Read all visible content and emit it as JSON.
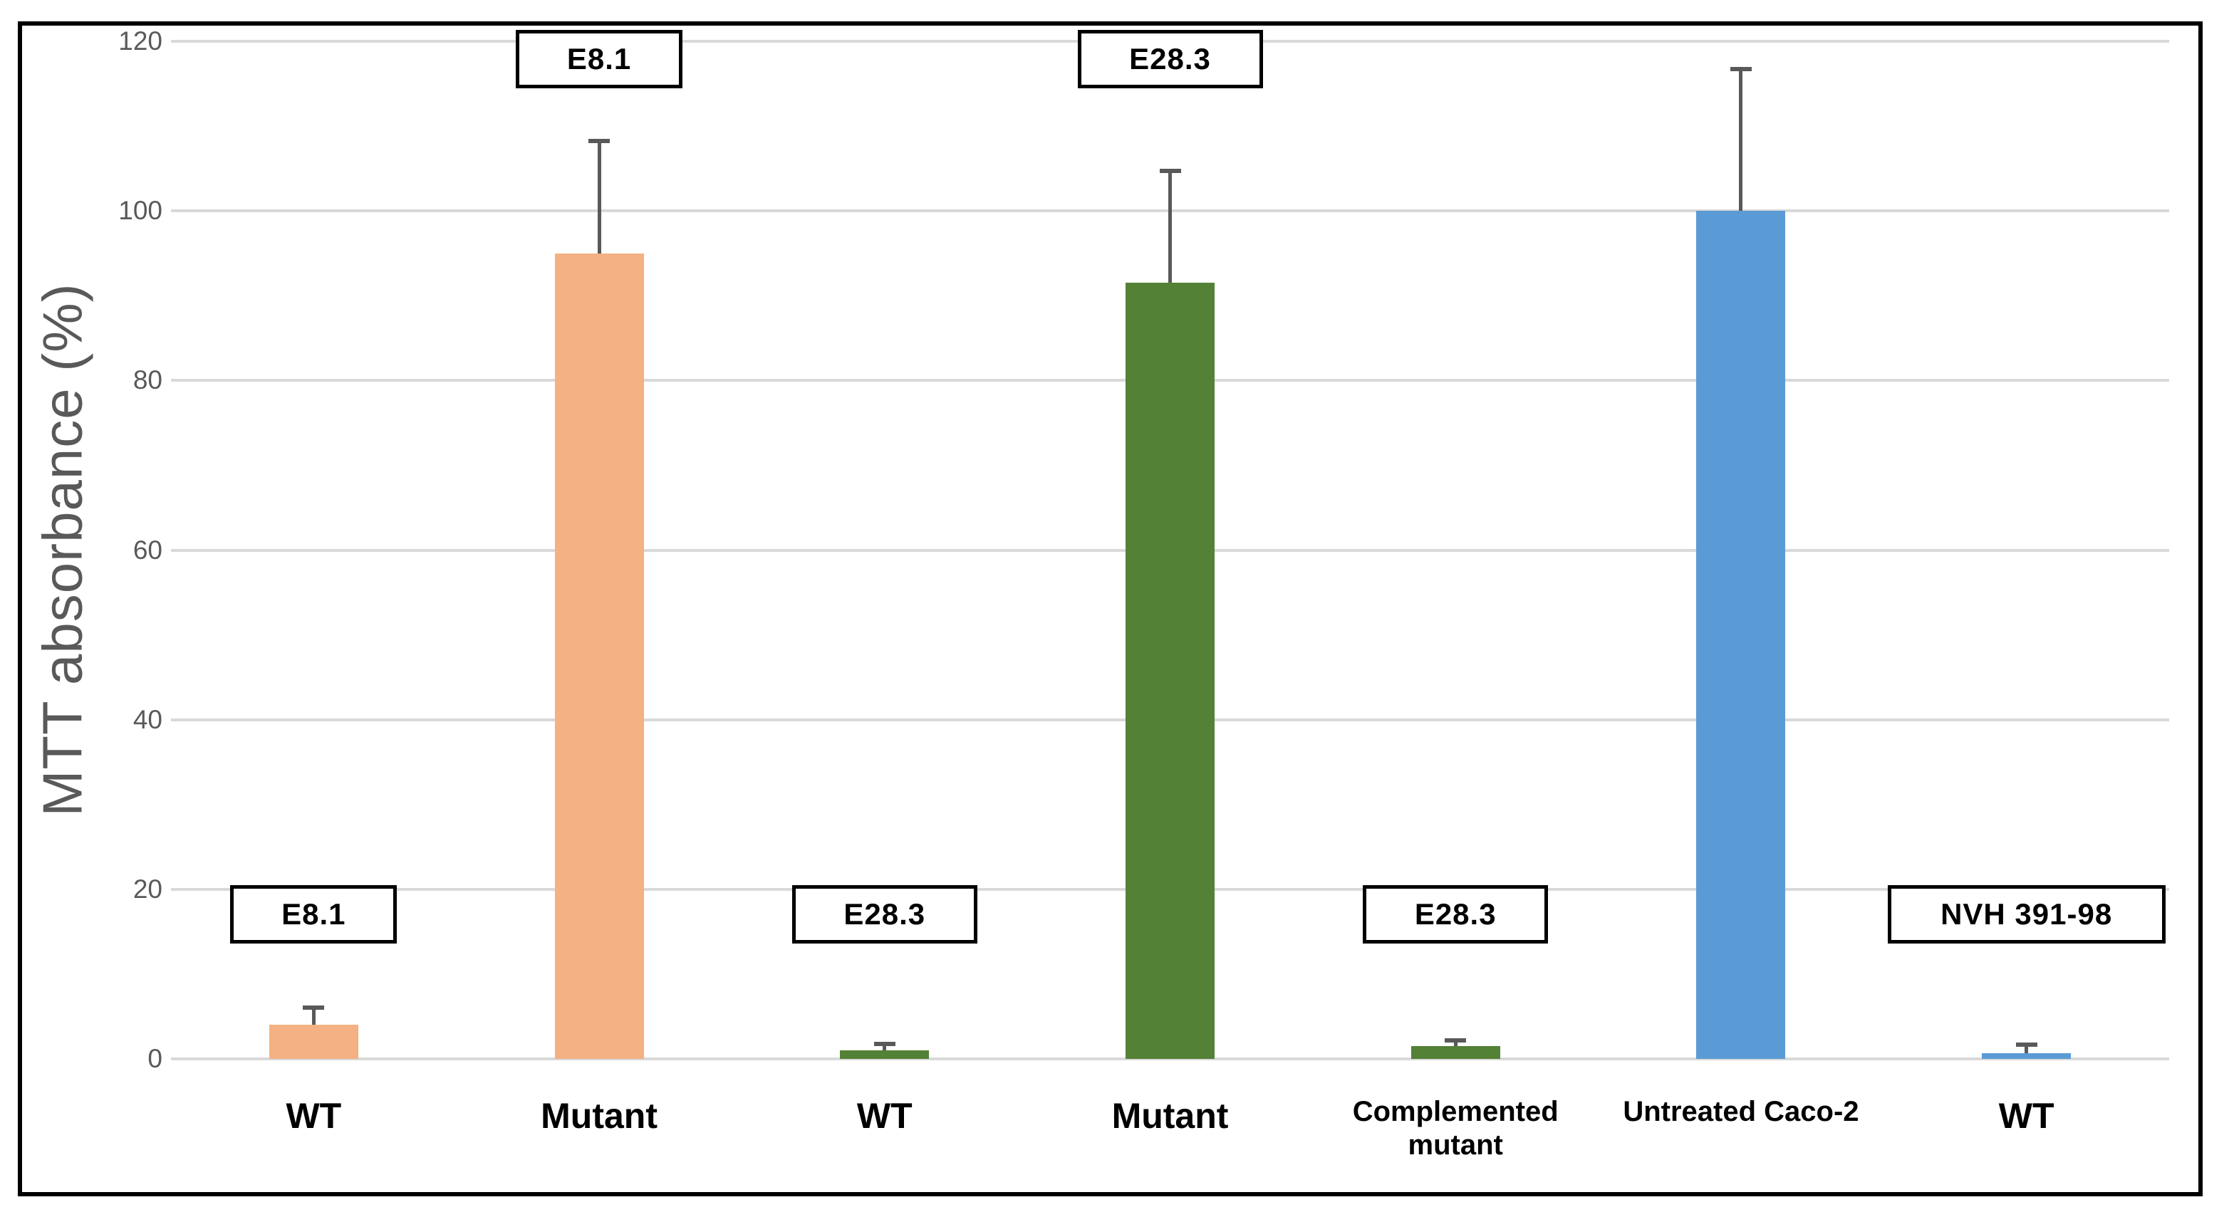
{
  "chart_data": {
    "type": "bar",
    "title": "",
    "xlabel": "",
    "ylabel": "MTT absorbance (%)",
    "ylim": [
      0,
      120
    ],
    "yticks": [
      0,
      20,
      40,
      60,
      80,
      100,
      120
    ],
    "grid": true,
    "legend": "none",
    "categories": [
      "WT",
      "Mutant",
      "WT",
      "Mutant",
      "Complemented mutant",
      "Untreated Caco-2",
      "WT"
    ],
    "series": [
      {
        "name": "MTT absorbance (%)",
        "values": [
          4,
          95,
          1,
          91.5,
          1.5,
          100,
          0.7
        ],
        "error_plus": [
          2.3,
          13.5,
          1,
          13.5,
          0.9,
          17,
          1.2
        ],
        "bar_colors": [
          "#f4b183",
          "#f4b183",
          "#538135",
          "#538135",
          "#538135",
          "#5b9bd5",
          "#5b9bd5"
        ]
      }
    ],
    "annotations": [
      {
        "text": "E8.1",
        "bar_index": 0,
        "row": "lower"
      },
      {
        "text": "E8.1",
        "bar_index": 1,
        "row": "upper"
      },
      {
        "text": "E28.3",
        "bar_index": 2,
        "row": "lower"
      },
      {
        "text": "E28.3",
        "bar_index": 3,
        "row": "upper"
      },
      {
        "text": "E28.3",
        "bar_index": 4,
        "row": "lower"
      },
      {
        "text": "NVH 391-98",
        "bar_index": 6,
        "row": "lower"
      }
    ],
    "colors": {
      "orange": "#f4b183",
      "green": "#538135",
      "blue": "#5b9bd5",
      "gridline": "#d9d9d9",
      "error_bar": "#595959",
      "axis_text": "#595959",
      "category_text": "#000000",
      "frame_border": "#000000"
    }
  }
}
